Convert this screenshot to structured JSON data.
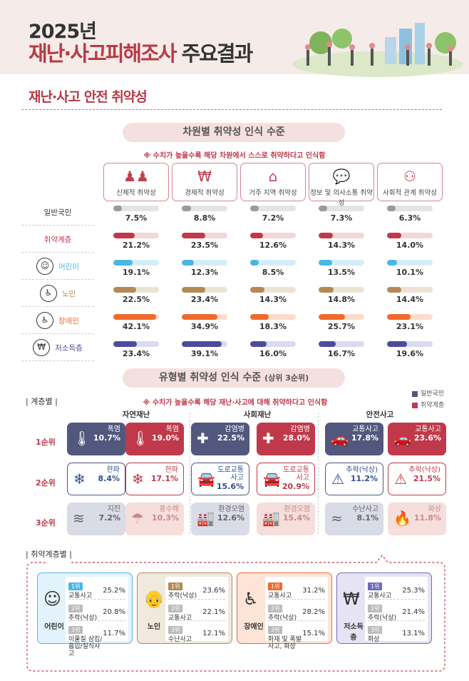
{
  "header": {
    "year": "2025년",
    "title_red": "재난·사고피해조사",
    "title_dark": " 주요결과"
  },
  "section_title": "재난·사고 안전 취약성",
  "part1": {
    "pill": "차원별 취약성 인식 수준",
    "note": "※ 수치가 높을수록 해당 차원에서 스스로 취약하다고 인식함",
    "columns": [
      {
        "label": "신체적 취약성",
        "icon": "people-icon"
      },
      {
        "label": "경제적 취약성",
        "icon": "money-hand-icon"
      },
      {
        "label": "거주 지역 취약성",
        "icon": "location-icon"
      },
      {
        "label": "정보 및 의사소통 취약성",
        "icon": "speech-bubbles-icon"
      },
      {
        "label": "사회적 관계 취약성",
        "icon": "network-icon"
      }
    ],
    "rows": [
      {
        "label": "일반국민",
        "color": "#9a9a9a",
        "track": "#e4e4e4",
        "values": [
          "7.5%",
          "8.8%",
          "7.2%",
          "7.3%",
          "6.3%"
        ],
        "nums": [
          7.5,
          8.8,
          7.2,
          7.3,
          6.3
        ]
      },
      {
        "label": "취약계층",
        "color": "#c0394a",
        "track": "#f2d7d9",
        "values": [
          "21.2%",
          "23.5%",
          "12.6%",
          "14.3%",
          "14.0%"
        ],
        "nums": [
          21.2,
          23.5,
          12.6,
          14.3,
          14.0
        ]
      },
      {
        "label": "어린이",
        "color": "#4bb6e6",
        "track": "#d4eef9",
        "values": [
          "19.1%",
          "12.3%",
          "8.5%",
          "13.5%",
          "10.1%"
        ],
        "nums": [
          19.1,
          12.3,
          8.5,
          13.5,
          10.1
        ]
      },
      {
        "label": "노인",
        "color": "#b38a55",
        "track": "#ede3d4",
        "values": [
          "22.5%",
          "23.4%",
          "14.3%",
          "14.8%",
          "14.4%"
        ],
        "nums": [
          22.5,
          23.4,
          14.3,
          14.8,
          14.4
        ]
      },
      {
        "label": "장애인",
        "color": "#ef6a2a",
        "track": "#fbdcca",
        "values": [
          "42.1%",
          "34.9%",
          "18.3%",
          "25.7%",
          "23.1%"
        ],
        "nums": [
          42.1,
          34.9,
          18.3,
          25.7,
          23.1
        ]
      },
      {
        "label": "저소득층",
        "color": "#4d4b9a",
        "track": "#dcdaf0",
        "values": [
          "23.4%",
          "39.1%",
          "16.0%",
          "16.7%",
          "19.6%"
        ],
        "nums": [
          23.4,
          39.1,
          16.0,
          16.7,
          19.6
        ]
      }
    ]
  },
  "part2": {
    "pill": "유형별 취약성 인식 수준",
    "pill_sub": "(상위 3순위)",
    "note": "※ 수치가 높을수록 해당 재난·사고에 대해 취약하다고 인식함",
    "group_label": "계층별",
    "legend": [
      {
        "label": "일반국민",
        "color": "#52577d"
      },
      {
        "label": "취약계층",
        "color": "#c0394a"
      }
    ],
    "groups": [
      "자연재난",
      "사회재난",
      "안전사고"
    ],
    "ranks": [
      "1순위",
      "2순위",
      "3순위"
    ],
    "cells": [
      [
        {
          "name": "폭염",
          "value": "10.7%",
          "icon": "thermometer-icon"
        },
        {
          "name": "폭염",
          "value": "19.0%",
          "icon": "thermometer-icon"
        },
        {
          "name": "감염병",
          "value": "22.5%",
          "icon": "first-aid-icon"
        },
        {
          "name": "감염병",
          "value": "28.0%",
          "icon": "first-aid-icon"
        },
        {
          "name": "교통사고",
          "value": "17.8%",
          "icon": "car-crash-icon"
        },
        {
          "name": "교통사고",
          "value": "23.6%",
          "icon": "car-crash-icon"
        }
      ],
      [
        {
          "name": "한파",
          "value": "8.4%",
          "icon": "cold-icon"
        },
        {
          "name": "한파",
          "value": "17.1%",
          "icon": "cold-icon"
        },
        {
          "name": "도로교통\n사고",
          "value": "15.6%",
          "icon": "road-accident-icon"
        },
        {
          "name": "도로교통\n사고",
          "value": "20.9%",
          "icon": "road-accident-icon"
        },
        {
          "name": "추락(낙상)",
          "value": "11.2%",
          "icon": "fall-icon"
        },
        {
          "name": "추락(낙상)",
          "value": "21.5%",
          "icon": "fall-icon"
        }
      ],
      [
        {
          "name": "지진",
          "value": "7.2%",
          "icon": "earthquake-icon"
        },
        {
          "name": "풍수해",
          "value": "10.3%",
          "icon": "storm-icon"
        },
        {
          "name": "환경오염",
          "value": "12.6%",
          "icon": "factory-icon"
        },
        {
          "name": "환경오염",
          "value": "15.4%",
          "icon": "factory-icon"
        },
        {
          "name": "수난사고",
          "value": "8.1%",
          "icon": "drowning-icon"
        },
        {
          "name": "화상",
          "value": "11.8%",
          "icon": "burn-icon"
        }
      ]
    ],
    "vuln_label": "취약계층별",
    "cards": [
      {
        "who": "어린이",
        "color": "#4bb6e6",
        "bg": "#e3f3fb",
        "items": [
          {
            "rank": "1위",
            "name": "교통사고",
            "value": "25.2%"
          },
          {
            "rank": "2위",
            "name": "추락(낙상)",
            "value": "20.8%"
          },
          {
            "rank": "3위",
            "name": "이물질 삼킴/흡입/질식사고",
            "value": "11.7%"
          }
        ]
      },
      {
        "who": "노인",
        "color": "#b38a55",
        "bg": "#f1e9dd",
        "items": [
          {
            "rank": "1위",
            "name": "추락(낙상)",
            "value": "23.6%"
          },
          {
            "rank": "2위",
            "name": "교통사고",
            "value": "22.1%"
          },
          {
            "rank": "3위",
            "name": "수난사고",
            "value": "12.1%"
          }
        ]
      },
      {
        "who": "장애인",
        "color": "#ef6a2a",
        "bg": "#fde4d6",
        "items": [
          {
            "rank": "1위",
            "name": "교통사고",
            "value": "31.2%"
          },
          {
            "rank": "2위",
            "name": "추락(낙상)",
            "value": "28.2%"
          },
          {
            "rank": "3위",
            "name": "화재 및 폭발사고, 화상",
            "value": "15.1%"
          }
        ]
      },
      {
        "who": "저소득층",
        "color": "#6d6ab5",
        "bg": "#e6e4f4",
        "items": [
          {
            "rank": "1위",
            "name": "교통사고",
            "value": "25.3%"
          },
          {
            "rank": "2위",
            "name": "추락(낙상)",
            "value": "21.4%"
          },
          {
            "rank": "3위",
            "name": "화상",
            "value": "13.1%"
          }
        ]
      }
    ]
  }
}
